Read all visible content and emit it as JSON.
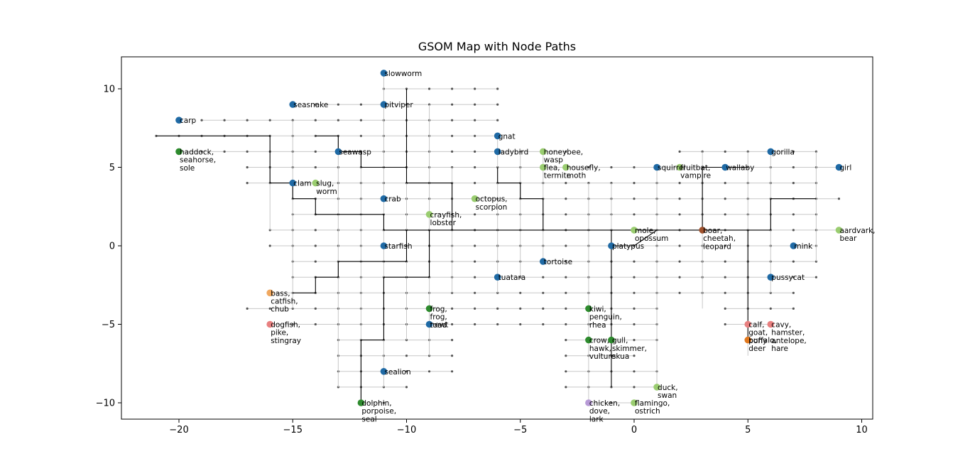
{
  "chart_data": {
    "type": "scatter",
    "title": "GSOM Map with Node Paths",
    "xlabel": "",
    "ylabel": "",
    "xlim": [
      -22.5,
      10.5
    ],
    "ylim": [
      -11.5,
      12
    ],
    "xticks": [
      -20,
      -15,
      -10,
      -5,
      0,
      5,
      10
    ],
    "yticks": [
      -10,
      -5,
      0,
      5,
      10
    ],
    "x_tick_labels": [
      "−20",
      "−15",
      "−10",
      "−5",
      "0",
      "5",
      "10"
    ],
    "y_tick_labels": [
      "−10",
      "−5",
      "0",
      "5",
      "10"
    ],
    "grid": false,
    "legend": "none",
    "colors": {
      "grid_node": "#555555",
      "grid_edge": "#c8c8c8",
      "path": "#000000",
      "axis": "#000000"
    },
    "labeled_nodes": [
      {
        "x": -20,
        "y": 8,
        "label": [
          "carp"
        ],
        "color": "#1f6aa5"
      },
      {
        "x": -20,
        "y": 6,
        "label": [
          "haddock,",
          "seahorse,",
          "sole"
        ],
        "color": "#2e8b2e"
      },
      {
        "x": -15,
        "y": 9,
        "label": [
          "seasnake"
        ],
        "color": "#1f6aa5"
      },
      {
        "x": -15,
        "y": 4,
        "label": [
          "clam"
        ],
        "color": "#1f6aa5"
      },
      {
        "x": -14,
        "y": 4,
        "label": [
          "slug,",
          "worm"
        ],
        "color": "#9acd70"
      },
      {
        "x": -13,
        "y": 6,
        "label": [
          "seawasp"
        ],
        "color": "#1f6aa5"
      },
      {
        "x": -11,
        "y": 11,
        "label": [
          "slowworm"
        ],
        "color": "#1f6aa5"
      },
      {
        "x": -11,
        "y": 9,
        "label": [
          "pitviper"
        ],
        "color": "#1f6aa5"
      },
      {
        "x": -11,
        "y": 3,
        "label": [
          "crab"
        ],
        "color": "#1f6aa5"
      },
      {
        "x": -11,
        "y": 0,
        "label": [
          "starfish"
        ],
        "color": "#1f6aa5"
      },
      {
        "x": -11,
        "y": -8,
        "label": [
          "sealion"
        ],
        "color": "#1f6aa5"
      },
      {
        "x": -12,
        "y": -10,
        "label": [
          "dolphin,",
          "porpoise,",
          "seal"
        ],
        "color": "#2e8b2e"
      },
      {
        "x": -16,
        "y": -3,
        "label": [
          "bass,",
          "catfish,",
          "chub"
        ],
        "color": "#f0a860"
      },
      {
        "x": -16,
        "y": -5,
        "label": [
          "dogfish,",
          "pike,",
          "stingray"
        ],
        "color": "#e88080"
      },
      {
        "x": -9,
        "y": 2,
        "label": [
          "crayfish,",
          "lobster"
        ],
        "color": "#9acd70"
      },
      {
        "x": -9,
        "y": -4,
        "label": [
          "frog,",
          "frog,",
          "toad"
        ],
        "color": "#2e8b2e"
      },
      {
        "x": -9,
        "y": -5,
        "label": [
          "newt"
        ],
        "color": "#1f6aa5"
      },
      {
        "x": -7,
        "y": 3,
        "label": [
          "octopus,",
          "scorpion"
        ],
        "color": "#9acd70"
      },
      {
        "x": -6,
        "y": 7,
        "label": [
          "gnat"
        ],
        "color": "#1f6aa5"
      },
      {
        "x": -6,
        "y": 6,
        "label": [
          "ladybird"
        ],
        "color": "#1f6aa5"
      },
      {
        "x": -6,
        "y": -2,
        "label": [
          "tuatara"
        ],
        "color": "#1f6aa5"
      },
      {
        "x": -4,
        "y": 6,
        "label": [
          "honeybee,",
          "wasp"
        ],
        "color": "#9acd70"
      },
      {
        "x": -4,
        "y": 5,
        "label": [
          "flea,",
          "termite"
        ],
        "color": "#9acd70"
      },
      {
        "x": -3,
        "y": 5,
        "label": [
          "housefly,",
          "moth"
        ],
        "color": "#9acd70"
      },
      {
        "x": -4,
        "y": -1,
        "label": [
          "tortoise"
        ],
        "color": "#1f6aa5"
      },
      {
        "x": -2,
        "y": -4,
        "label": [
          "kiwi,",
          "penguin,",
          "rhea"
        ],
        "color": "#2e8b2e"
      },
      {
        "x": -2,
        "y": -6,
        "label": [
          "crow,",
          "hawk,",
          "vulture"
        ],
        "color": "#2e8b2e"
      },
      {
        "x": -1,
        "y": -6,
        "label": [
          "gull,",
          "skimmer,",
          "skua"
        ],
        "color": "#2e8b2e"
      },
      {
        "x": -2,
        "y": -10,
        "label": [
          "chicken,",
          "dove,",
          "lark"
        ],
        "color": "#b79ad6"
      },
      {
        "x": -1,
        "y": 0,
        "label": [
          "platypus"
        ],
        "color": "#1f6aa5"
      },
      {
        "x": 0,
        "y": 1,
        "label": [
          "mole,",
          "opossum"
        ],
        "color": "#9acd70"
      },
      {
        "x": 0,
        "y": -10,
        "label": [
          "flamingo,",
          "ostrich"
        ],
        "color": "#9acd70"
      },
      {
        "x": 1,
        "y": -9,
        "label": [
          "duck,",
          "swan"
        ],
        "color": "#9acd70"
      },
      {
        "x": 1,
        "y": 5,
        "label": [
          "squirrel"
        ],
        "color": "#1f6aa5"
      },
      {
        "x": 2,
        "y": 5,
        "label": [
          "fruitbat,",
          "vampire"
        ],
        "color": "#9acd70"
      },
      {
        "x": 3,
        "y": 1,
        "label": [
          "boar,",
          "cheetah,",
          "leopard"
        ],
        "color": "#a0522d"
      },
      {
        "x": 4,
        "y": 5,
        "label": [
          "wallaby"
        ],
        "color": "#1f6aa5"
      },
      {
        "x": 6,
        "y": 6,
        "label": [
          "gorilla"
        ],
        "color": "#1f6aa5"
      },
      {
        "x": 9,
        "y": 5,
        "label": [
          "girl"
        ],
        "color": "#1f6aa5"
      },
      {
        "x": 9,
        "y": 1,
        "label": [
          "aardvark,",
          "bear"
        ],
        "color": "#9acd70"
      },
      {
        "x": 7,
        "y": 0,
        "label": [
          "mink"
        ],
        "color": "#1f6aa5"
      },
      {
        "x": 6,
        "y": -2,
        "label": [
          "pussycat"
        ],
        "color": "#1f6aa5"
      },
      {
        "x": 5,
        "y": -5,
        "label": [
          "calf,",
          "goat,",
          "pony"
        ],
        "color": "#e88080"
      },
      {
        "x": 6,
        "y": -5,
        "label": [
          "cavy,",
          "hamster,",
          "antelope,",
          "hare"
        ],
        "color": "#e88080"
      },
      {
        "x": 5,
        "y": -6,
        "label": [
          "buffalo,",
          "deer"
        ],
        "color": "#e0781e"
      }
    ],
    "paths": [
      [
        [
          -21,
          7
        ],
        [
          -16,
          7
        ],
        [
          -16,
          4
        ],
        [
          -15,
          4
        ],
        [
          -15,
          3
        ],
        [
          -14,
          3
        ],
        [
          -14,
          2
        ],
        [
          -11,
          2
        ],
        [
          -11,
          1
        ],
        [
          0,
          1
        ],
        [
          3,
          1
        ],
        [
          6,
          1
        ]
      ],
      [
        [
          -14,
          7
        ],
        [
          -13,
          7
        ],
        [
          -13,
          6
        ]
      ],
      [
        [
          -13,
          6
        ],
        [
          -12,
          6
        ],
        [
          -12,
          5
        ],
        [
          -10,
          5
        ]
      ],
      [
        [
          -10,
          10
        ],
        [
          -10,
          4
        ],
        [
          -8,
          4
        ],
        [
          -8,
          1
        ]
      ],
      [
        [
          -9,
          1
        ],
        [
          -9,
          -2
        ],
        [
          -11,
          -2
        ],
        [
          -11,
          -6
        ],
        [
          -12,
          -6
        ],
        [
          -12,
          -10
        ]
      ],
      [
        [
          -10,
          1
        ],
        [
          -10,
          -1
        ],
        [
          -13,
          -1
        ],
        [
          -13,
          -2
        ],
        [
          -14,
          -2
        ],
        [
          -14,
          -3
        ],
        [
          -15,
          -3
        ]
      ],
      [
        [
          -6,
          5
        ],
        [
          -6,
          4
        ],
        [
          -5,
          4
        ],
        [
          -5,
          3
        ],
        [
          -4,
          3
        ],
        [
          -4,
          1
        ]
      ],
      [
        [
          -1,
          1
        ],
        [
          -1,
          -9
        ]
      ],
      [
        [
          -1,
          0
        ],
        [
          0,
          0
        ],
        [
          1,
          1
        ]
      ],
      [
        [
          3,
          1
        ],
        [
          3,
          5
        ],
        [
          5,
          5
        ]
      ],
      [
        [
          5,
          1
        ],
        [
          5,
          -6
        ]
      ],
      [
        [
          6,
          1
        ],
        [
          6,
          3
        ],
        [
          8,
          3
        ]
      ]
    ]
  }
}
